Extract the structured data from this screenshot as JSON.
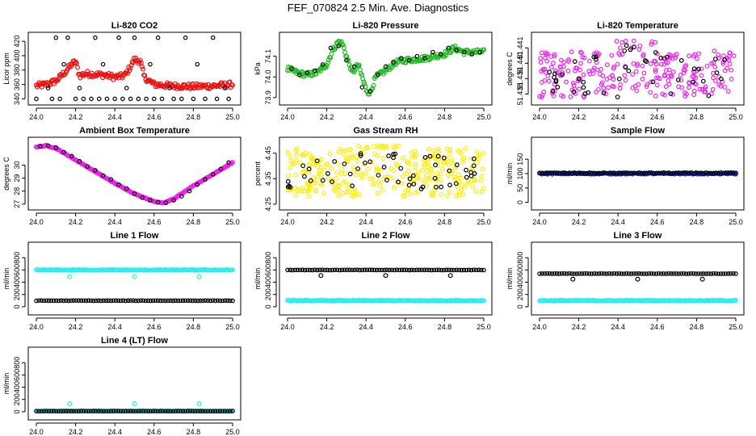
{
  "page_title": "FEF_070824  2.5 Min. Ave. Diagnostics",
  "colors": {
    "black": "#000000",
    "red": "#ee1111",
    "green": "#22bb22",
    "magenta": "#ee22ee",
    "yellow": "#ffee00",
    "blue": "#1122cc",
    "cyan": "#22eeee"
  },
  "chart_data": [
    {
      "id": "co2",
      "type": "scatter",
      "title": "Li-820 CO2",
      "ylabel": "Licor ppm",
      "xlim": [
        24.0,
        25.0
      ],
      "ylim": [
        336,
        428
      ],
      "xticks": [
        "24.0",
        "24.2",
        "24.4",
        "24.6",
        "24.8",
        "25.0"
      ],
      "yticks": [
        "340",
        "360",
        "380",
        "400",
        "420"
      ],
      "series": [
        {
          "name": "co2-fill",
          "color": "red",
          "style": "dense",
          "x": [
            24.0,
            24.05,
            24.1,
            24.15,
            24.18,
            24.2,
            24.22,
            24.25,
            24.3,
            24.35,
            24.4,
            24.45,
            24.48,
            24.5,
            24.53,
            24.55,
            24.6,
            24.7,
            24.8,
            24.9,
            25.0
          ],
          "y": [
            358,
            360,
            365,
            378,
            388,
            392,
            372,
            375,
            374,
            373,
            370,
            372,
            385,
            395,
            392,
            370,
            360,
            358,
            357,
            358,
            360
          ],
          "spread": 8
        },
        {
          "name": "co2-points",
          "color": "black",
          "style": "open",
          "x": [
            24.0,
            24.08,
            24.12,
            24.2,
            24.24,
            24.28,
            24.32,
            24.36,
            24.4,
            24.44,
            24.48,
            24.52,
            24.56,
            24.6,
            24.64,
            24.7,
            24.74,
            24.8,
            24.86,
            24.92,
            24.98,
            24.1,
            24.16,
            24.3,
            24.42,
            24.5,
            24.62,
            24.76,
            24.9,
            24.06,
            24.14,
            24.22,
            24.34,
            24.46,
            24.58,
            24.68,
            24.82,
            24.96
          ],
          "y": [
            340,
            340,
            340,
            340,
            340,
            340,
            340,
            340,
            340,
            340,
            340,
            340,
            340,
            340,
            340,
            340,
            340,
            340,
            340,
            340,
            340,
            425,
            425,
            425,
            425,
            425,
            425,
            425,
            425,
            355,
            388,
            355,
            388,
            355,
            388,
            355,
            388,
            355
          ]
        }
      ]
    },
    {
      "id": "pressure",
      "type": "scatter",
      "title": "Li-820 Pressure",
      "ylabel": "kPa",
      "xlim": [
        24.0,
        25.0
      ],
      "ylim": [
        73.88,
        74.2
      ],
      "xticks": [
        "24.0",
        "24.2",
        "24.4",
        "24.6",
        "24.8",
        "25.0"
      ],
      "yticks": [
        "73.9",
        "74.0",
        "74.1"
      ],
      "series": [
        {
          "name": "pressure-fill",
          "color": "green",
          "style": "dense",
          "x": [
            24.0,
            24.05,
            24.1,
            24.15,
            24.2,
            24.23,
            24.26,
            24.28,
            24.3,
            24.33,
            24.36,
            24.4,
            24.42,
            24.45,
            24.5,
            24.55,
            24.6,
            24.7,
            24.8,
            24.85,
            24.9,
            25.0
          ],
          "y": [
            74.04,
            74.02,
            74.01,
            74.02,
            74.06,
            74.13,
            74.17,
            74.16,
            74.1,
            74.02,
            74.06,
            73.94,
            73.92,
            74.0,
            74.03,
            74.07,
            74.08,
            74.09,
            74.11,
            74.14,
            74.12,
            74.12
          ],
          "spread": 0.025
        },
        {
          "name": "pressure-points",
          "color": "black",
          "style": "open",
          "x": [
            24.02,
            24.06,
            24.1,
            24.14,
            24.18,
            24.22,
            24.26,
            24.3,
            24.34,
            24.38,
            24.42,
            24.46,
            24.5,
            24.54,
            24.58,
            24.62,
            24.66,
            24.7,
            24.74,
            24.78,
            24.82,
            24.86,
            24.9,
            24.94,
            24.98
          ],
          "y": [
            74.04,
            74.01,
            74.02,
            74.03,
            74.06,
            74.14,
            74.15,
            74.08,
            74.05,
            73.95,
            73.93,
            74.01,
            74.05,
            74.07,
            74.09,
            74.08,
            74.1,
            74.09,
            74.12,
            74.11,
            74.14,
            74.13,
            74.12,
            74.11,
            74.12
          ]
        }
      ]
    },
    {
      "id": "licor-temp",
      "type": "scatter",
      "title": "Li-820 Temperature",
      "ylabel": "degrees C",
      "xlim": [
        24.0,
        25.0
      ],
      "ylim": [
        51.4375,
        51.4418
      ],
      "xticks": [
        "24.0",
        "24.2",
        "24.4",
        "24.6",
        "24.8",
        "25.0"
      ],
      "yticks": [
        "51.438",
        "51.439",
        "51.440",
        "51.441"
      ],
      "series": [
        {
          "name": "temp-magenta",
          "color": "magenta",
          "style": "noise",
          "count": 260,
          "ymin": 51.4378,
          "ymax": 51.4408,
          "y_high": 51.4415
        },
        {
          "name": "temp-black",
          "color": "black",
          "style": "noise",
          "count": 45,
          "ymin": 51.4378,
          "ymax": 51.4405,
          "y_high": 51.4412
        }
      ]
    },
    {
      "id": "box-temp",
      "type": "scatter",
      "title": "Ambient Box Temperature",
      "ylabel": "degrees C",
      "xlim": [
        24.0,
        25.0
      ],
      "ylim": [
        26.8,
        31.9
      ],
      "xticks": [
        "24.0",
        "24.2",
        "24.4",
        "24.6",
        "24.8",
        "25.0"
      ],
      "yticks": [
        "27",
        "28",
        "29",
        "30"
      ],
      "series": [
        {
          "name": "box-fill",
          "color": "magenta",
          "style": "dense",
          "x": [
            24.0,
            24.05,
            24.1,
            24.2,
            24.3,
            24.4,
            24.5,
            24.6,
            24.65,
            24.7,
            24.8,
            24.9,
            25.0
          ],
          "y": [
            31.4,
            31.5,
            31.3,
            30.4,
            29.5,
            28.6,
            27.8,
            27.2,
            27.1,
            27.4,
            28.4,
            29.3,
            30.2
          ],
          "spread": 0.06
        },
        {
          "name": "box-points",
          "color": "black",
          "style": "open",
          "x": [
            24.02,
            24.06,
            24.1,
            24.14,
            24.18,
            24.22,
            24.26,
            24.3,
            24.34,
            24.38,
            24.42,
            24.46,
            24.5,
            24.54,
            24.58,
            24.62,
            24.66,
            24.7,
            24.74,
            24.78,
            24.82,
            24.86,
            24.9,
            24.94,
            24.98
          ],
          "y": [
            31.45,
            31.5,
            31.35,
            31.0,
            30.7,
            30.3,
            29.9,
            29.6,
            29.2,
            28.9,
            28.5,
            28.2,
            27.8,
            27.5,
            27.3,
            27.15,
            27.1,
            27.3,
            27.6,
            28.0,
            28.5,
            28.9,
            29.3,
            29.7,
            30.2
          ]
        }
      ]
    },
    {
      "id": "rh",
      "type": "scatter",
      "title": "Gas Stream RH",
      "ylabel": "percent",
      "xlim": [
        24.0,
        25.0
      ],
      "ylim": [
        4.24,
        4.5
      ],
      "xticks": [
        "24.0",
        "24.2",
        "24.4",
        "24.6",
        "24.8",
        "25.0"
      ],
      "yticks": [
        "4.25",
        "4.35",
        "4.45"
      ],
      "series": [
        {
          "name": "rh-yellow",
          "color": "yellow",
          "style": "noise",
          "count": 320,
          "ymin": 4.28,
          "ymax": 4.47,
          "y_high": 4.48
        },
        {
          "name": "rh-black",
          "color": "black",
          "style": "noise",
          "count": 55,
          "ymin": 4.31,
          "ymax": 4.44,
          "y_high": 4.45
        }
      ]
    },
    {
      "id": "sample-flow",
      "type": "scatter",
      "title": "Sample Flow",
      "ylabel": "ml/min",
      "xlim": [
        24.0,
        25.0
      ],
      "ylim": [
        -15,
        215
      ],
      "xticks": [
        "24.0",
        "24.2",
        "24.4",
        "24.6",
        "24.8",
        "25.0"
      ],
      "yticks": [
        "0",
        "50",
        "100",
        "150"
      ],
      "series": [
        {
          "name": "sample-blue",
          "color": "blue",
          "style": "flat",
          "level": 100,
          "spread": 4
        },
        {
          "name": "sample-black",
          "color": "black",
          "style": "openline",
          "level": 102,
          "spread": 3
        }
      ]
    },
    {
      "id": "line1",
      "type": "scatter",
      "title": "Line 1 Flow",
      "ylabel": "ml/min",
      "xlim": [
        24.0,
        25.0
      ],
      "ylim": [
        -80,
        1000
      ],
      "xticks": [
        "24.0",
        "24.2",
        "24.4",
        "24.6",
        "24.8",
        "25.0"
      ],
      "yticks": [
        "0",
        "200",
        "400",
        "600",
        "800"
      ],
      "series": [
        {
          "name": "line1-cyan",
          "color": "cyan",
          "style": "flat",
          "level": 600,
          "spread": 12,
          "dips": [
            [
              24.17,
              490
            ],
            [
              24.5,
              490
            ],
            [
              24.83,
              490
            ]
          ]
        },
        {
          "name": "line1-black",
          "color": "black",
          "style": "openline",
          "level": 100,
          "spread": 5
        }
      ]
    },
    {
      "id": "line2",
      "type": "scatter",
      "title": "Line 2 Flow",
      "ylabel": "ml/min",
      "xlim": [
        24.0,
        25.0
      ],
      "ylim": [
        -80,
        1000
      ],
      "xticks": [
        "24.0",
        "24.2",
        "24.4",
        "24.6",
        "24.8",
        "25.0"
      ],
      "yticks": [
        "0",
        "200",
        "400",
        "600",
        "800"
      ],
      "series": [
        {
          "name": "line2-cyan-low",
          "color": "cyan",
          "style": "flat",
          "level": 100,
          "spread": 12
        },
        {
          "name": "line2-black",
          "color": "black",
          "style": "openline",
          "level": 600,
          "spread": 5,
          "dips": [
            [
              24.17,
              510
            ],
            [
              24.5,
              510
            ],
            [
              24.83,
              510
            ]
          ]
        }
      ]
    },
    {
      "id": "line3",
      "type": "scatter",
      "title": "Line 3 Flow",
      "ylabel": "ml/min",
      "xlim": [
        24.0,
        25.0
      ],
      "ylim": [
        -80,
        1000
      ],
      "xticks": [
        "24.0",
        "24.2",
        "24.4",
        "24.6",
        "24.8",
        "25.0"
      ],
      "yticks": [
        "0",
        "200",
        "400",
        "600",
        "800"
      ],
      "series": [
        {
          "name": "line3-cyan-low",
          "color": "cyan",
          "style": "flat",
          "level": 100,
          "spread": 12
        },
        {
          "name": "line3-black",
          "color": "black",
          "style": "openline",
          "level": 540,
          "spread": 5,
          "dips": [
            [
              24.17,
              450
            ],
            [
              24.5,
              450
            ],
            [
              24.83,
              450
            ]
          ]
        }
      ]
    },
    {
      "id": "line4",
      "type": "scatter",
      "title": "Line 4 (LT) Flow",
      "ylabel": "ml/min",
      "xlim": [
        24.0,
        25.0
      ],
      "ylim": [
        -80,
        1000
      ],
      "xticks": [
        "24.0",
        "24.2",
        "24.4",
        "24.6",
        "24.8",
        "25.0"
      ],
      "yticks": [
        "0",
        "200",
        "400",
        "600",
        "800"
      ],
      "series": [
        {
          "name": "line4-cyan",
          "color": "cyan",
          "style": "flat",
          "level": 10,
          "spread": 4,
          "dips": [
            [
              24.17,
              130
            ],
            [
              24.5,
              130
            ],
            [
              24.83,
              130
            ]
          ]
        },
        {
          "name": "line4-black",
          "color": "black",
          "style": "openline",
          "level": 10,
          "spread": 3
        }
      ]
    }
  ]
}
